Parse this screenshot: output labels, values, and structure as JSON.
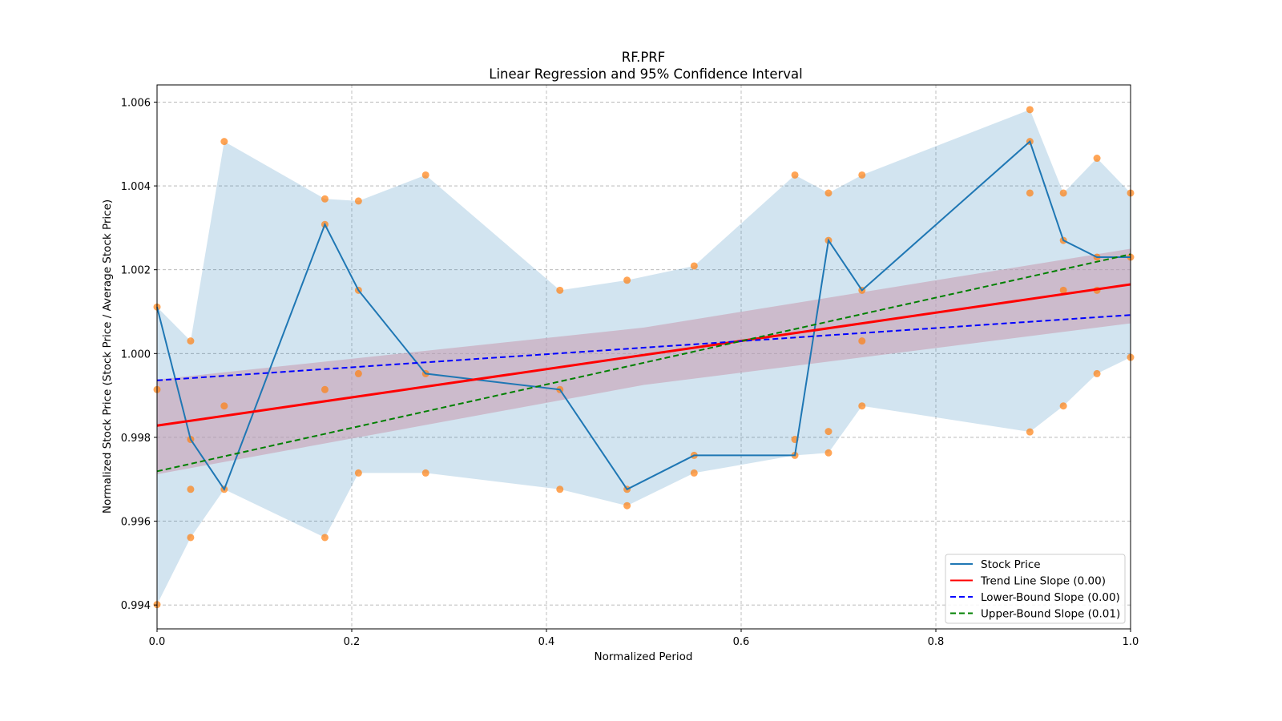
{
  "chart_data": {
    "type": "line",
    "title": "RF.PRF",
    "subtitle": "Linear Regression and 95% Confidence Interval",
    "xlabel": "Normalized Period",
    "ylabel": "Normalized Stock Price (Stock Price / Average Stock Price)",
    "xlim": [
      0.0,
      1.0
    ],
    "ylim": [
      0.99343,
      1.00641
    ],
    "grid": true,
    "legend_position": "bottom-right",
    "x_ticks": [
      0.0,
      0.2,
      0.4,
      0.6,
      0.8,
      1.0
    ],
    "x_tick_labels": [
      "0.0",
      "0.2",
      "0.4",
      "0.6",
      "0.8",
      "1.0"
    ],
    "y_ticks": [
      0.994,
      0.996,
      0.998,
      1.0,
      1.002,
      1.004,
      1.006
    ],
    "y_tick_labels": [
      "0.994",
      "0.996",
      "0.998",
      "1.000",
      "1.002",
      "1.004",
      "1.006"
    ],
    "x": [
      0.0,
      0.0345,
      0.069,
      0.1724,
      0.2069,
      0.2759,
      0.4138,
      0.4828,
      0.5517,
      0.6552,
      0.6897,
      0.7241,
      0.8966,
      0.931,
      0.9655,
      1.0
    ],
    "series": [
      {
        "name": "Stock Price",
        "type": "line",
        "color": "#1f77b4",
        "values": [
          1.00111,
          0.99795,
          0.99676,
          1.00308,
          1.00151,
          0.99952,
          0.99914,
          0.99676,
          0.99757,
          0.99757,
          1.0027,
          1.00151,
          1.00506,
          1.0027,
          1.0023,
          1.0023
        ]
      },
      {
        "name": "Price Range Band",
        "type": "area",
        "color": "#1f77b4",
        "opacity": 0.2,
        "upper": [
          1.00111,
          1.0003,
          1.00506,
          1.00369,
          1.00364,
          1.00426,
          1.00151,
          1.00175,
          1.00209,
          1.00426,
          1.00383,
          1.00426,
          1.00582,
          1.00383,
          1.00466,
          1.00383
        ],
        "lower": [
          0.99401,
          0.99561,
          0.99676,
          0.99561,
          0.99715,
          0.99715,
          0.99676,
          0.99637,
          0.99715,
          0.99757,
          0.99763,
          0.99875,
          0.99813,
          0.99875,
          0.99952,
          0.99991
        ]
      },
      {
        "name": "Observations",
        "type": "scatter",
        "color": "#ff7f0e",
        "points": [
          [
            0.0,
            1.00111
          ],
          [
            0.0,
            0.99914
          ],
          [
            0.0,
            0.99401
          ],
          [
            0.0345,
            1.0003
          ],
          [
            0.0345,
            0.99795
          ],
          [
            0.0345,
            0.99676
          ],
          [
            0.0345,
            0.99561
          ],
          [
            0.069,
            1.00506
          ],
          [
            0.069,
            0.99875
          ],
          [
            0.069,
            0.99676
          ],
          [
            0.1724,
            1.00369
          ],
          [
            0.1724,
            1.00308
          ],
          [
            0.1724,
            0.99914
          ],
          [
            0.1724,
            0.99561
          ],
          [
            0.2069,
            1.00364
          ],
          [
            0.2069,
            1.00151
          ],
          [
            0.2069,
            0.99952
          ],
          [
            0.2069,
            0.99715
          ],
          [
            0.2759,
            1.00426
          ],
          [
            0.2759,
            0.99952
          ],
          [
            0.2759,
            0.99715
          ],
          [
            0.4138,
            1.00151
          ],
          [
            0.4138,
            0.99914
          ],
          [
            0.4138,
            0.99676
          ],
          [
            0.4828,
            1.00175
          ],
          [
            0.4828,
            0.99676
          ],
          [
            0.4828,
            0.99637
          ],
          [
            0.5517,
            1.00209
          ],
          [
            0.5517,
            0.99757
          ],
          [
            0.5517,
            0.99715
          ],
          [
            0.6552,
            1.00426
          ],
          [
            0.6552,
            0.99795
          ],
          [
            0.6552,
            0.99757
          ],
          [
            0.6897,
            1.00383
          ],
          [
            0.6897,
            1.0027
          ],
          [
            0.6897,
            0.99814
          ],
          [
            0.6897,
            0.99763
          ],
          [
            0.7241,
            1.00426
          ],
          [
            0.7241,
            1.00151
          ],
          [
            0.7241,
            1.0003
          ],
          [
            0.7241,
            0.99875
          ],
          [
            0.8966,
            1.00582
          ],
          [
            0.8966,
            1.00506
          ],
          [
            0.8966,
            1.00383
          ],
          [
            0.8966,
            0.99813
          ],
          [
            0.931,
            1.00383
          ],
          [
            0.931,
            1.0027
          ],
          [
            0.931,
            1.00151
          ],
          [
            0.931,
            0.99875
          ],
          [
            0.9655,
            1.00466
          ],
          [
            0.9655,
            1.0023
          ],
          [
            0.9655,
            1.00151
          ],
          [
            0.9655,
            0.99952
          ],
          [
            1.0,
            1.00383
          ],
          [
            1.0,
            1.0023
          ],
          [
            1.0,
            0.99991
          ]
        ]
      },
      {
        "name": "Trend Line Slope (0.00)",
        "type": "line",
        "color": "#ff0000",
        "style": "solid",
        "endpoints": [
          [
            0.0,
            0.99828
          ],
          [
            1.0,
            1.00165
          ]
        ]
      },
      {
        "name": "Confidence Band",
        "type": "area",
        "color": "#c8a0b4",
        "upper": [
          [
            0.0,
            0.99938
          ],
          [
            0.5,
            1.00062
          ],
          [
            1.0,
            1.0025
          ]
        ],
        "lower": [
          [
            0.0,
            0.99712
          ],
          [
            0.5,
            0.99925
          ],
          [
            1.0,
            1.00072
          ]
        ]
      },
      {
        "name": "Lower-Bound Slope (0.00)",
        "type": "line",
        "color": "#0000ff",
        "style": "dashed",
        "endpoints": [
          [
            0.0,
            0.99936
          ],
          [
            1.0,
            1.00092
          ]
        ]
      },
      {
        "name": "Upper-Bound Slope (0.01)",
        "type": "line",
        "color": "#008000",
        "style": "dashed",
        "endpoints": [
          [
            0.0,
            0.99719
          ],
          [
            1.0,
            1.00237
          ]
        ]
      }
    ],
    "legend": [
      {
        "label": "Stock Price",
        "color": "#1f77b4",
        "style": "solid"
      },
      {
        "label": "Trend Line Slope (0.00)",
        "color": "#ff0000",
        "style": "solid"
      },
      {
        "label": "Lower-Bound Slope (0.00)",
        "color": "#0000ff",
        "style": "dashed"
      },
      {
        "label": "Upper-Bound Slope (0.01)",
        "color": "#008000",
        "style": "dashed"
      }
    ]
  }
}
